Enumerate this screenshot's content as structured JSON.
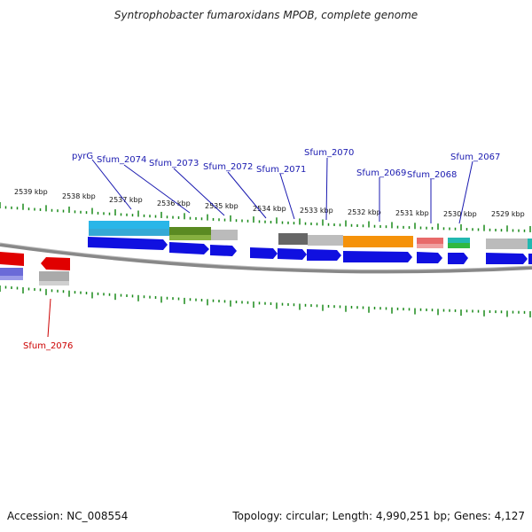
{
  "title": "Syntrophobacter fumaroxidans MPOB, complete genome",
  "footer": {
    "accession": "Accession: NC_008554",
    "summary": "Topology: circular; Length: 4,990,251 bp; Genes: 4,127"
  },
  "colors": {
    "gene_label": "#1a1ab0",
    "reverse_gene_label": "#cc0000",
    "tick": "#1a8a1a",
    "backbone": "#777777",
    "forward_gene": "#1010e0",
    "reverse_gene": "#e00000"
  },
  "kbp_labels": [
    "2539 kbp",
    "2538 kbp",
    "2537 kbp",
    "2536 kbp",
    "2535 kbp",
    "2534 kbp",
    "2533 kbp",
    "2532 kbp",
    "2531 kbp",
    "2530 kbp",
    "2529 kbp"
  ],
  "gene_labels": [
    "pyrG",
    "Sfum_2074",
    "Sfum_2073",
    "Sfum_2072",
    "Sfum_2071",
    "Sfum_2070",
    "Sfum_2069",
    "Sfum_2068",
    "Sfum_2067"
  ],
  "reverse_gene_labels": [
    "Sfum_2076"
  ],
  "icons": {
    "forward_gene": "right-arrow-block",
    "reverse_gene": "left-arrow-block"
  }
}
